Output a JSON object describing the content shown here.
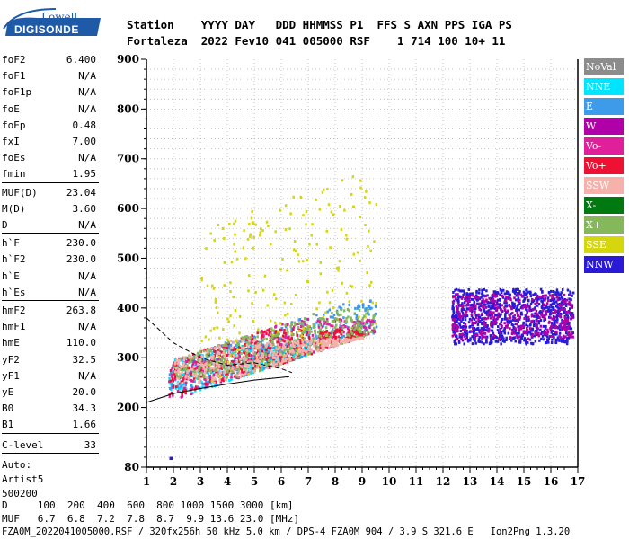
{
  "logo": {
    "top": "Lowell",
    "main": "DIGISONDE"
  },
  "header": {
    "line1": "Station    YYYY DAY   DDD HHMMSS P1  FFS S AXN PPS IGA PS",
    "line2": "Fortaleza  2022 Fev10 041 005000 RSF    1 714 100 10+ 11"
  },
  "scaled": {
    "group1": [
      {
        "label": "foF2",
        "value": "6.400"
      },
      {
        "label": "foF1",
        "value": "N/A"
      },
      {
        "label": "foF1p",
        "value": "N/A"
      },
      {
        "label": "foE",
        "value": "N/A"
      },
      {
        "label": "foEp",
        "value": "0.48"
      },
      {
        "label": "fxI",
        "value": "7.00"
      },
      {
        "label": "foEs",
        "value": "N/A"
      },
      {
        "label": "fmin",
        "value": "1.95"
      }
    ],
    "group2": [
      {
        "label": "MUF(D)",
        "value": "23.04"
      },
      {
        "label": "M(D)",
        "value": "3.60"
      },
      {
        "label": "D",
        "value": "N/A"
      }
    ],
    "group3": [
      {
        "label": "h`F",
        "value": "230.0"
      },
      {
        "label": "h`F2",
        "value": "230.0"
      },
      {
        "label": "h`E",
        "value": "N/A"
      },
      {
        "label": "h`Es",
        "value": "N/A"
      }
    ],
    "group4": [
      {
        "label": "hmF2",
        "value": "263.8"
      },
      {
        "label": "hmF1",
        "value": "N/A"
      },
      {
        "label": "hmE",
        "value": "110.0"
      },
      {
        "label": "yF2",
        "value": "32.5"
      },
      {
        "label": "yF1",
        "value": "N/A"
      },
      {
        "label": "yE",
        "value": "20.0"
      },
      {
        "label": "B0",
        "value": "34.3"
      },
      {
        "label": "B1",
        "value": "1.66"
      }
    ],
    "clevel": {
      "label": "C-level",
      "value": "33"
    },
    "auto": [
      "Auto:",
      "Artist5",
      "500200"
    ]
  },
  "legend": [
    {
      "label": "NoVal",
      "color": "#8c8c8c"
    },
    {
      "label": "NNE",
      "color": "#00e5ff"
    },
    {
      "label": "E",
      "color": "#3d9be9"
    },
    {
      "label": "W",
      "color": "#b000a8"
    },
    {
      "label": "Vo-",
      "color": "#e0209a"
    },
    {
      "label": "Vo+",
      "color": "#ee1133"
    },
    {
      "label": "SSW",
      "color": "#f5b1aa"
    },
    {
      "label": "X-",
      "color": "#007a10"
    },
    {
      "label": "X+",
      "color": "#84b85a"
    },
    {
      "label": "SSE",
      "color": "#d6d60e"
    },
    {
      "label": "NNW",
      "color": "#2a1ad8"
    }
  ],
  "footer": {
    "d_line": "D     100  200  400  600  800 1000 1500 3000 [km]",
    "muf_line": "MUF   6.7  6.8  7.2  7.8  8.7  9.9 13.6 23.0 [MHz]",
    "info_line": "FZA0M_2022041005000.RSF / 320fx256h 50 kHz 5.0 km / DPS-4 FZA0M 904 / 3.9 S 321.6 E   Ion2Png 1.3.20"
  },
  "chart_data": {
    "type": "scatter",
    "xlim": [
      1,
      17
    ],
    "ylim": [
      80,
      900
    ],
    "x_ticks": [
      "1",
      "2",
      "3",
      "4",
      "5",
      "6",
      "7",
      "8",
      "9",
      "10",
      "11",
      "12",
      "13",
      "14",
      "15",
      "16",
      "17"
    ],
    "y_ticks": [
      "80",
      "200",
      "300",
      "400",
      "500",
      "600",
      "700",
      "800",
      "900"
    ],
    "grid": true,
    "legend_placement": "right",
    "echo_regions": [
      {
        "series": "NNE",
        "x": [
          1.8,
          7.0
        ],
        "y": [
          230,
          330
        ]
      },
      {
        "series": "E",
        "x": [
          1.8,
          9.5
        ],
        "y": [
          240,
          420
        ]
      },
      {
        "series": "Vo-",
        "x": [
          1.8,
          9.5
        ],
        "y": [
          220,
          380
        ]
      },
      {
        "series": "Vo+",
        "x": [
          1.8,
          9.0
        ],
        "y": [
          225,
          360
        ]
      },
      {
        "series": "SSE",
        "x": [
          3.0,
          9.5
        ],
        "y": [
          250,
          670
        ]
      },
      {
        "series": "NNW",
        "x": [
          12.3,
          16.8
        ],
        "y": [
          330,
          440
        ]
      },
      {
        "series": "W",
        "x": [
          12.3,
          16.8
        ],
        "y": [
          340,
          430
        ]
      },
      {
        "series": "X+",
        "x": [
          2.0,
          9.5
        ],
        "y": [
          260,
          400
        ]
      },
      {
        "series": "SSW",
        "x": [
          2.0,
          9.0
        ],
        "y": [
          250,
          340
        ]
      }
    ],
    "isolated_point": {
      "x": 1.9,
      "y": 98
    },
    "profile_curve": {
      "x": [
        1.0,
        2.0,
        3.0,
        4.0,
        5.0,
        6.0,
        6.4
      ],
      "y": [
        380,
        330,
        300,
        285,
        290,
        278,
        270
      ]
    },
    "trace_curve": {
      "x": [
        1.0,
        2.0,
        3.0,
        4.0,
        5.0,
        6.3
      ],
      "y": [
        210,
        228,
        238,
        247,
        255,
        262
      ]
    }
  }
}
